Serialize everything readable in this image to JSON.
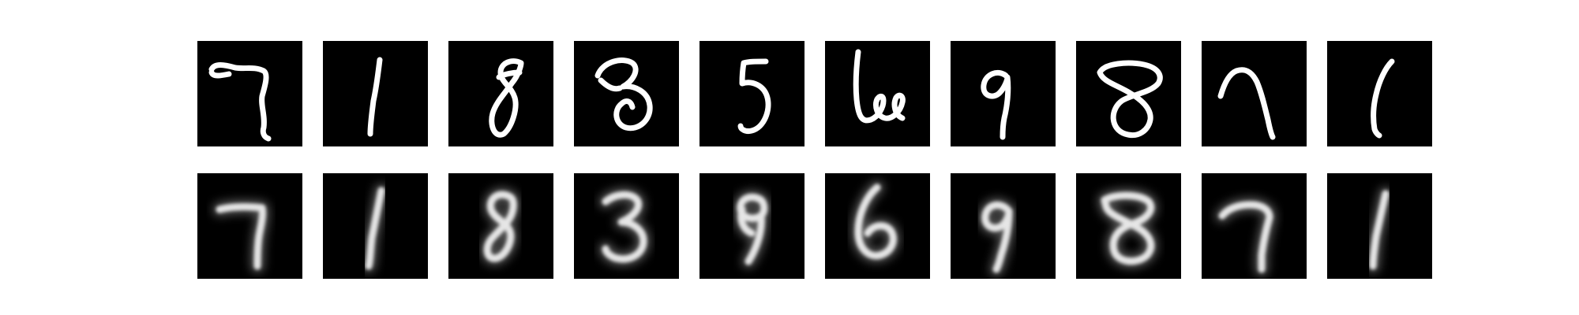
{
  "figure": {
    "rows": [
      {
        "id": "original",
        "style": "sharp",
        "digits": [
          {
            "glyph": "7"
          },
          {
            "glyph": "1"
          },
          {
            "glyph": "8"
          },
          {
            "glyph": "3"
          },
          {
            "glyph": "5"
          },
          {
            "glyph": "6"
          },
          {
            "glyph": "9"
          },
          {
            "glyph": "8"
          },
          {
            "glyph": "7"
          },
          {
            "glyph": "1"
          }
        ]
      },
      {
        "id": "reconstructed",
        "style": "blurred",
        "digits": [
          {
            "glyph": "7"
          },
          {
            "glyph": "1"
          },
          {
            "glyph": "8"
          },
          {
            "glyph": "3"
          },
          {
            "glyph": "8"
          },
          {
            "glyph": "6"
          },
          {
            "glyph": "9"
          },
          {
            "glyph": "8"
          },
          {
            "glyph": "7"
          },
          {
            "glyph": "1"
          }
        ]
      }
    ],
    "colors": {
      "background": "#ffffff",
      "panel": "#000000",
      "ink": "#ffffff"
    }
  }
}
